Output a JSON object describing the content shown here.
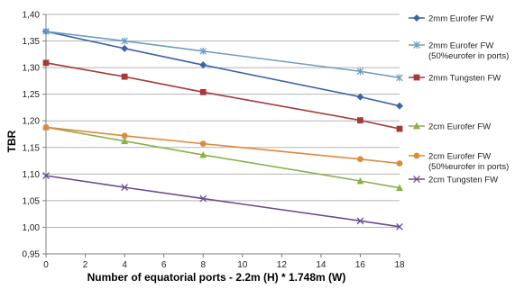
{
  "chart_data": {
    "type": "line",
    "title": "",
    "xlabel": "Number of equatorial ports - 2.2m (H) * 1.748m (W)",
    "ylabel": "TBR",
    "xlim": [
      0,
      18
    ],
    "ylim": [
      0.95,
      1.4
    ],
    "xticks": [
      "0",
      "2",
      "4",
      "6",
      "8",
      "10",
      "12",
      "14",
      "16",
      "18"
    ],
    "yticks": [
      "0,95",
      "1,00",
      "1,05",
      "1,10",
      "1,15",
      "1,20",
      "1,25",
      "1,30",
      "1,35",
      "1,40"
    ],
    "grid": "horizontal",
    "legend_position": "right",
    "x": [
      0,
      4,
      8,
      16,
      18
    ],
    "series": [
      {
        "name": "2mm Eurofer FW",
        "name_lines": [
          "2mm Eurofer FW"
        ],
        "color": "#3C64A6",
        "marker": "diamond",
        "values": [
          1.368,
          1.336,
          1.305,
          1.245,
          1.228
        ]
      },
      {
        "name": "2mm Eurofer FW (50%eurofer in ports)",
        "name_lines": [
          "2mm Eurofer FW",
          "(50%eurofer in ports)"
        ],
        "color": "#6E9DC0",
        "marker": "asterisk",
        "values": [
          1.368,
          1.35,
          1.331,
          1.293,
          1.281
        ]
      },
      {
        "name": "2mm Tungsten FW",
        "name_lines": [
          "2mm Tungsten FW"
        ],
        "color": "#A43A3A",
        "marker": "square",
        "values": [
          1.309,
          1.283,
          1.254,
          1.201,
          1.185
        ]
      },
      {
        "name": "2cm Eurofer FW",
        "name_lines": [
          "2cm Eurofer FW"
        ],
        "color": "#8DB04E",
        "marker": "triangle",
        "values": [
          1.188,
          1.162,
          1.136,
          1.087,
          1.074
        ]
      },
      {
        "name": "2cm Eurofer FW (50%eurofer in ports)",
        "name_lines": [
          "2cm Eurofer FW",
          "(50%eurofer in ports)"
        ],
        "color": "#DD8A3C",
        "marker": "circle",
        "values": [
          1.188,
          1.172,
          1.157,
          1.128,
          1.12
        ]
      },
      {
        "name": "2cm Tungsten FW",
        "name_lines": [
          "2cm Tungsten FW"
        ],
        "color": "#6A4C93",
        "marker": "x",
        "values": [
          1.097,
          1.075,
          1.054,
          1.012,
          1.001
        ]
      }
    ]
  }
}
